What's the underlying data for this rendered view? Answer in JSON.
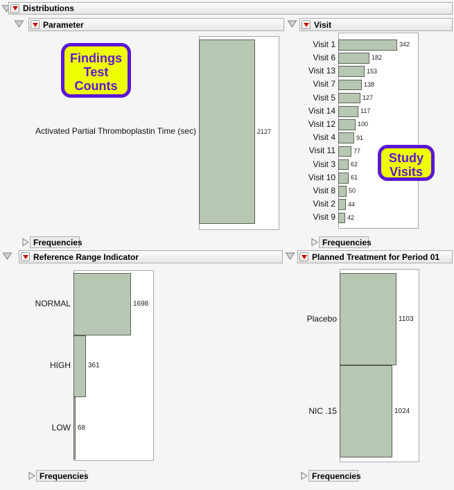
{
  "root_outline": {
    "label": "Distributions"
  },
  "panels": [
    {
      "id": "parameter",
      "title": "Parameter",
      "frequencies_label": "Frequencies"
    },
    {
      "id": "visit",
      "title": "Visit",
      "frequencies_label": "Frequencies"
    },
    {
      "id": "reference_range",
      "title": "Reference Range Indicator",
      "frequencies_label": "Frequencies"
    },
    {
      "id": "planned_treatment",
      "title": "Planned Treatment for Period 01",
      "frequencies_label": "Frequencies"
    }
  ],
  "chart_data": [
    {
      "id": "parameter",
      "type": "bar",
      "orientation": "horizontal",
      "title": "Parameter",
      "categories": [
        "Activated Partial Thromboplastin Time (sec)"
      ],
      "values": [
        2127
      ]
    },
    {
      "id": "visit",
      "type": "bar",
      "orientation": "horizontal",
      "title": "Visit",
      "categories": [
        "Visit 1",
        "Visit 6",
        "Visit 13",
        "Visit 7",
        "Visit 5",
        "Visit 14",
        "Visit 12",
        "Visit 4",
        "Visit 11",
        "Visit 3",
        "Visit 10",
        "Visit 8",
        "Visit 2",
        "Visit 9"
      ],
      "values": [
        342,
        182,
        153,
        138,
        127,
        117,
        100,
        91,
        77,
        62,
        61,
        50,
        44,
        42
      ]
    },
    {
      "id": "reference_range",
      "type": "bar",
      "orientation": "horizontal",
      "title": "Reference Range Indicator",
      "categories": [
        "NORMAL",
        "HIGH",
        "LOW"
      ],
      "values": [
        1698,
        361,
        68
      ]
    },
    {
      "id": "planned_treatment",
      "type": "bar",
      "orientation": "horizontal",
      "title": "Planned Treatment for Period 01",
      "categories": [
        "Placebo",
        "NIC .15"
      ],
      "values": [
        1103,
        1024
      ]
    }
  ],
  "annotations": [
    {
      "id": "findings",
      "lines": [
        "Findings",
        "Test",
        "Counts"
      ]
    },
    {
      "id": "study",
      "lines": [
        "Study",
        "Visits"
      ]
    }
  ],
  "colors": {
    "bar_fill": "#b8c6b4",
    "bar_border": "#5c6156",
    "annotation_fill": "#eeff00",
    "annotation_accent": "#5b16d6",
    "red_triangle": "#c40000",
    "background": "#f5f5f5"
  },
  "icons": {
    "open_disclosure": "triangle-down-open",
    "closed_disclosure": "triangle-right-closed",
    "menu_button": "red-triangle-menu"
  }
}
